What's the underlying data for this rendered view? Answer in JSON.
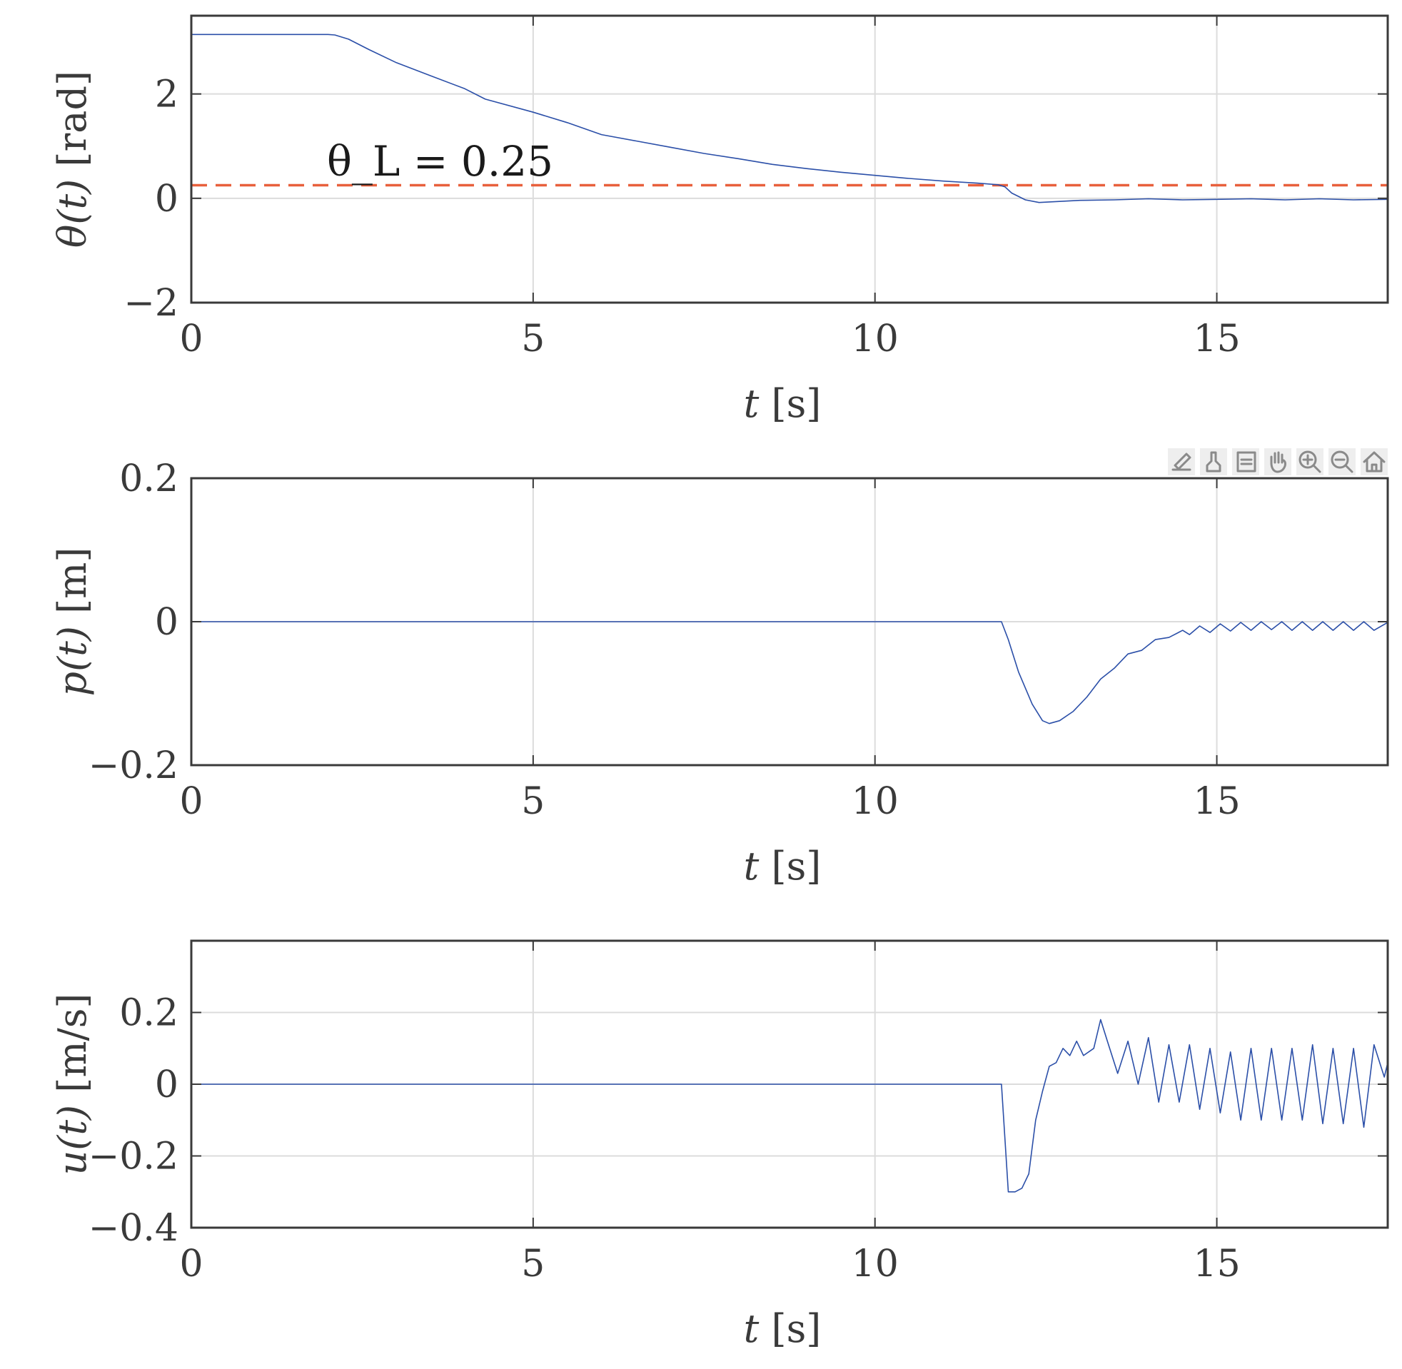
{
  "toolbar": {
    "buttons": [
      {
        "name": "export-icon"
      },
      {
        "name": "brush-icon"
      },
      {
        "name": "datatip-icon"
      },
      {
        "name": "pan-hand-icon"
      },
      {
        "name": "zoom-in-icon"
      },
      {
        "name": "zoom-out-icon"
      },
      {
        "name": "home-icon"
      }
    ]
  },
  "chart_data": [
    {
      "type": "line",
      "xlabel_var": "t",
      "xlabel_unit": "[s]",
      "ylabel_var": "θ(t)",
      "ylabel_unit": "[rad]",
      "xlim": [
        0,
        17.5
      ],
      "ylim": [
        -2,
        3.5
      ],
      "xticks": [
        0,
        5,
        10,
        15
      ],
      "yticks": [
        -2,
        0,
        2
      ],
      "xtick_labels": [
        "0",
        "5",
        "10",
        "15"
      ],
      "ytick_labels": [
        "−2",
        "0",
        "2"
      ],
      "grid": true,
      "series": [
        {
          "color": "#2b4fa8",
          "x": [
            0,
            2.0,
            2.1,
            2.3,
            2.6,
            3.0,
            3.5,
            4.0,
            4.3,
            5.0,
            5.5,
            6.0,
            6.5,
            7.0,
            7.5,
            8.0,
            8.5,
            9.0,
            9.5,
            10.0,
            10.5,
            11.0,
            11.5,
            11.8,
            11.9,
            12.0,
            12.2,
            12.4,
            12.7,
            13.0,
            13.5,
            14.0,
            14.5,
            15.0,
            15.5,
            16.0,
            16.5,
            17.0,
            17.5
          ],
          "y": [
            3.14,
            3.14,
            3.13,
            3.05,
            2.85,
            2.6,
            2.35,
            2.1,
            1.9,
            1.65,
            1.45,
            1.22,
            1.1,
            0.98,
            0.86,
            0.76,
            0.65,
            0.57,
            0.5,
            0.44,
            0.38,
            0.33,
            0.29,
            0.26,
            0.22,
            0.1,
            -0.03,
            -0.08,
            -0.06,
            -0.04,
            -0.03,
            -0.01,
            -0.03,
            -0.02,
            -0.01,
            -0.03,
            -0.01,
            -0.03,
            -0.02
          ]
        }
      ],
      "threshold": {
        "value": 0.25,
        "color": "#e8603c",
        "label": "θ_L = 0.25"
      }
    },
    {
      "type": "line",
      "xlabel_var": "t",
      "xlabel_unit": "[s]",
      "ylabel_var": "p(t)",
      "ylabel_unit": "[m]",
      "xlim": [
        0,
        17.5
      ],
      "ylim": [
        -0.2,
        0.2
      ],
      "xticks": [
        0,
        5,
        10,
        15
      ],
      "yticks": [
        -0.2,
        0,
        0.2
      ],
      "xtick_labels": [
        "0",
        "5",
        "10",
        "15"
      ],
      "ytick_labels": [
        "−0.2",
        "0",
        "0.2"
      ],
      "grid": true,
      "series": [
        {
          "color": "#2b4fa8",
          "x": [
            0,
            11.85,
            11.95,
            12.1,
            12.3,
            12.45,
            12.55,
            12.7,
            12.9,
            13.1,
            13.3,
            13.5,
            13.7,
            13.9,
            14.1,
            14.3,
            14.5,
            14.6,
            14.75,
            14.9,
            15.05,
            15.2,
            15.35,
            15.5,
            15.65,
            15.8,
            15.95,
            16.1,
            16.25,
            16.4,
            16.55,
            16.7,
            16.85,
            17.0,
            17.15,
            17.3,
            17.5
          ],
          "y": [
            0,
            0,
            -0.025,
            -0.07,
            -0.115,
            -0.138,
            -0.142,
            -0.138,
            -0.125,
            -0.105,
            -0.08,
            -0.065,
            -0.045,
            -0.04,
            -0.025,
            -0.022,
            -0.012,
            -0.018,
            -0.006,
            -0.015,
            -0.003,
            -0.013,
            -0.001,
            -0.012,
            0.0,
            -0.011,
            0.0,
            -0.012,
            0.0,
            -0.012,
            0.0,
            -0.012,
            0.0,
            -0.012,
            0.0,
            -0.012,
            -0.001
          ]
        }
      ]
    },
    {
      "type": "line",
      "xlabel_var": "t",
      "xlabel_unit": "[s]",
      "ylabel_var": "u(t)",
      "ylabel_unit": "[m/s]",
      "xlim": [
        0,
        17.5
      ],
      "ylim": [
        -0.4,
        0.4
      ],
      "xticks": [
        0,
        5,
        10,
        15
      ],
      "yticks": [
        -0.4,
        -0.2,
        0,
        0.2
      ],
      "xtick_labels": [
        "0",
        "5",
        "10",
        "15"
      ],
      "ytick_labels": [
        "−0.4",
        "−0.2",
        "0",
        "0.2"
      ],
      "grid": true,
      "series": [
        {
          "color": "#2b4fa8",
          "x": [
            0,
            11.85,
            11.9,
            11.95,
            12.05,
            12.15,
            12.25,
            12.35,
            12.45,
            12.55,
            12.65,
            12.75,
            12.85,
            12.95,
            13.05,
            13.2,
            13.3,
            13.4,
            13.55,
            13.7,
            13.85,
            14.0,
            14.15,
            14.3,
            14.45,
            14.6,
            14.75,
            14.9,
            15.05,
            15.2,
            15.35,
            15.5,
            15.65,
            15.8,
            15.95,
            16.1,
            16.25,
            16.4,
            16.55,
            16.7,
            16.85,
            17.0,
            17.15,
            17.3,
            17.45,
            17.5
          ],
          "y": [
            0,
            0,
            -0.15,
            -0.3,
            -0.3,
            -0.29,
            -0.25,
            -0.1,
            -0.02,
            0.05,
            0.06,
            0.1,
            0.08,
            0.12,
            0.08,
            0.1,
            0.18,
            0.12,
            0.03,
            0.12,
            0.0,
            0.13,
            -0.05,
            0.11,
            -0.05,
            0.11,
            -0.07,
            0.1,
            -0.08,
            0.09,
            -0.1,
            0.1,
            -0.1,
            0.1,
            -0.1,
            0.1,
            -0.1,
            0.11,
            -0.11,
            0.1,
            -0.11,
            0.1,
            -0.12,
            0.11,
            0.02,
            0.06
          ]
        }
      ]
    }
  ]
}
